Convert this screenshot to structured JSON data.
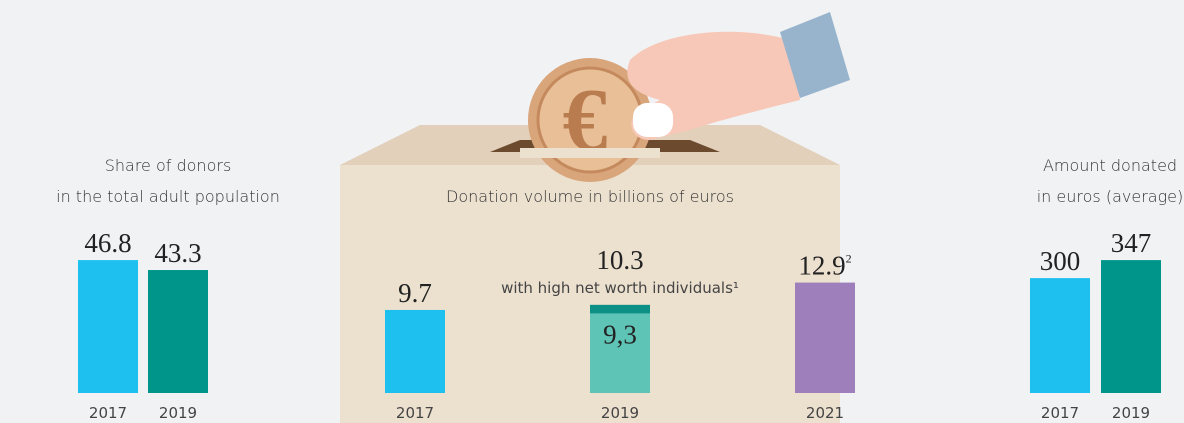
{
  "chart_data": [
    {
      "type": "bar",
      "title": [
        "Share of donors",
        "in the total adult population"
      ],
      "categories": [
        "2017",
        "2019"
      ],
      "values": [
        46.8,
        43.3
      ],
      "colors": [
        "#1ec0f0",
        "#00958a"
      ]
    },
    {
      "type": "bar",
      "title": [
        "Donation volume in billions of euros"
      ],
      "categories": [
        "2017",
        "2019",
        "2021"
      ],
      "values": [
        9.7,
        10.3,
        12.9
      ],
      "colors": [
        "#1ec0f0",
        "#0c8f84",
        "#9e7fbb"
      ],
      "label_colors": [
        "#222",
        "#0c9486",
        "#9e7fbb"
      ],
      "superscripts": [
        null,
        null,
        "2"
      ],
      "annotation": "with high net worth individuals¹",
      "inner": {
        "index": 1,
        "value": 9.3,
        "label": "9,3",
        "color": "#5ec4b6"
      }
    },
    {
      "type": "bar",
      "title": [
        "Amount donated",
        "in euros (average)"
      ],
      "categories": [
        "2017",
        "2019"
      ],
      "values": [
        300,
        347
      ],
      "colors": [
        "#1ec0f0",
        "#00958a"
      ]
    }
  ]
}
